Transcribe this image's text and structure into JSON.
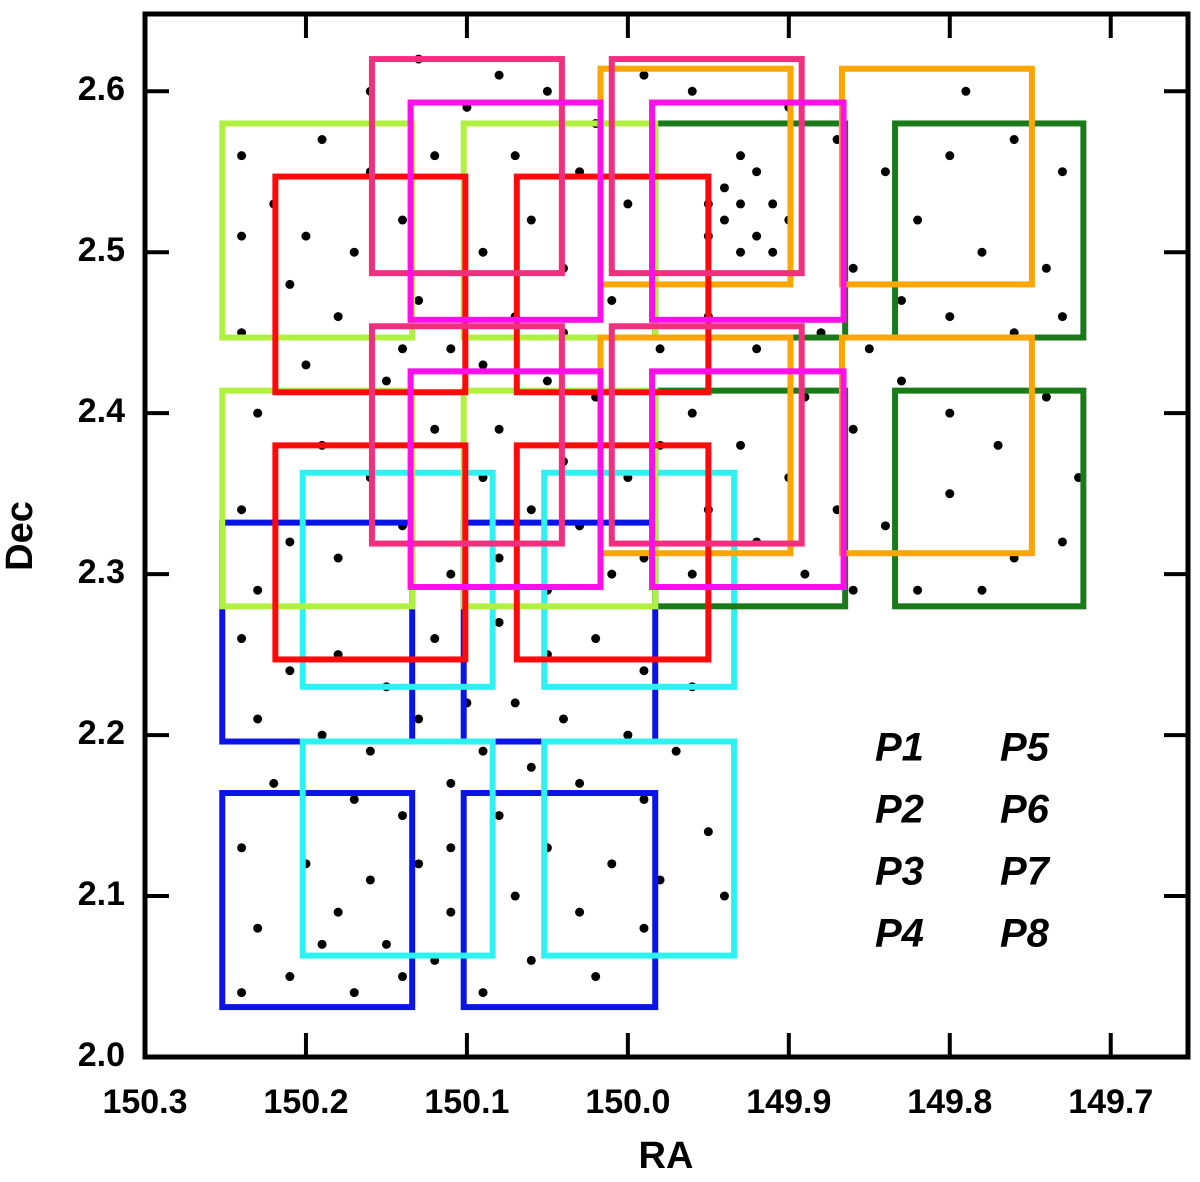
{
  "chart_data": {
    "type": "scatter",
    "x_label": "RA",
    "y_label": "Dec",
    "xlim": [
      150.3,
      149.652
    ],
    "ylim": [
      2.0,
      2.648
    ],
    "xticks": [
      150.3,
      150.2,
      150.1,
      {
        "value": 150,
        "label": "150.0"
      },
      149.9,
      149.8,
      149.7
    ],
    "yticks": [
      {
        "value": 2,
        "label": "2.0"
      },
      2.1,
      2.2,
      2.3,
      2.4,
      2.5,
      2.6
    ],
    "point_color": "#000000",
    "points": [
      [
        150.24,
        2.56
      ],
      [
        150.22,
        2.53
      ],
      [
        150.19,
        2.57
      ],
      [
        150.16,
        2.55
      ],
      [
        150.14,
        2.52
      ],
      [
        150.17,
        2.5
      ],
      [
        150.21,
        2.48
      ],
      [
        150.24,
        2.45
      ],
      [
        150.18,
        2.46
      ],
      [
        150.13,
        2.47
      ],
      [
        150.11,
        2.44
      ],
      [
        150.15,
        2.42
      ],
      [
        150.2,
        2.43
      ],
      [
        150.23,
        2.4
      ],
      [
        150.19,
        2.38
      ],
      [
        150.16,
        2.36
      ],
      [
        150.12,
        2.39
      ],
      [
        150.24,
        2.34
      ],
      [
        150.21,
        2.32
      ],
      [
        150.18,
        2.31
      ],
      [
        150.14,
        2.33
      ],
      [
        150.11,
        2.3
      ],
      [
        150.23,
        2.29
      ],
      [
        150.16,
        2.6
      ],
      [
        150.13,
        2.62
      ],
      [
        150.1,
        2.59
      ],
      [
        150.12,
        2.56
      ],
      [
        150.2,
        2.51
      ],
      [
        150.24,
        2.51
      ],
      [
        150.14,
        2.44
      ],
      [
        150.08,
        2.61
      ],
      [
        150.05,
        2.6
      ],
      [
        150.02,
        2.58
      ],
      [
        149.99,
        2.61
      ],
      [
        150.07,
        2.56
      ],
      [
        150.03,
        2.55
      ],
      [
        150.0,
        2.53
      ],
      [
        150.06,
        2.52
      ],
      [
        150.09,
        2.5
      ],
      [
        150.04,
        2.49
      ],
      [
        150.01,
        2.47
      ],
      [
        150.07,
        2.46
      ],
      [
        150.09,
        2.43
      ],
      [
        150.05,
        2.42
      ],
      [
        150.02,
        2.41
      ],
      [
        149.98,
        2.44
      ],
      [
        150.08,
        2.39
      ],
      [
        150.04,
        2.37
      ],
      [
        150.0,
        2.36
      ],
      [
        150.06,
        2.34
      ],
      [
        150.03,
        2.33
      ],
      [
        149.99,
        2.31
      ],
      [
        150.08,
        2.31
      ],
      [
        150.05,
        2.29
      ],
      [
        150.01,
        2.3
      ],
      [
        149.98,
        2.38
      ],
      [
        150.09,
        2.36
      ],
      [
        150.04,
        2.45
      ],
      [
        149.95,
        2.53
      ],
      [
        149.94,
        2.52
      ],
      [
        149.93,
        2.53
      ],
      [
        149.92,
        2.51
      ],
      [
        149.93,
        2.5
      ],
      [
        149.94,
        2.54
      ],
      [
        149.91,
        2.53
      ],
      [
        149.92,
        2.55
      ],
      [
        149.95,
        2.51
      ],
      [
        149.9,
        2.52
      ],
      [
        149.93,
        2.56
      ],
      [
        149.91,
        2.5
      ],
      [
        149.96,
        2.6
      ],
      [
        149.9,
        2.59
      ],
      [
        149.87,
        2.57
      ],
      [
        149.84,
        2.55
      ],
      [
        149.8,
        2.56
      ],
      [
        149.76,
        2.57
      ],
      [
        149.73,
        2.55
      ],
      [
        149.82,
        2.52
      ],
      [
        149.78,
        2.5
      ],
      [
        149.74,
        2.49
      ],
      [
        149.86,
        2.49
      ],
      [
        149.83,
        2.47
      ],
      [
        149.8,
        2.46
      ],
      [
        149.76,
        2.45
      ],
      [
        149.73,
        2.46
      ],
      [
        149.88,
        2.45
      ],
      [
        149.95,
        2.46
      ],
      [
        149.92,
        2.44
      ],
      [
        149.89,
        2.41
      ],
      [
        149.86,
        2.39
      ],
      [
        149.83,
        2.42
      ],
      [
        149.8,
        2.4
      ],
      [
        149.77,
        2.38
      ],
      [
        149.74,
        2.41
      ],
      [
        149.72,
        2.36
      ],
      [
        149.96,
        2.4
      ],
      [
        149.93,
        2.38
      ],
      [
        149.9,
        2.36
      ],
      [
        149.87,
        2.34
      ],
      [
        149.84,
        2.33
      ],
      [
        149.8,
        2.35
      ],
      [
        149.76,
        2.31
      ],
      [
        149.73,
        2.32
      ],
      [
        149.95,
        2.34
      ],
      [
        149.92,
        2.32
      ],
      [
        149.89,
        2.3
      ],
      [
        149.86,
        2.29
      ],
      [
        149.82,
        2.29
      ],
      [
        149.78,
        2.29
      ],
      [
        149.96,
        2.3
      ],
      [
        149.85,
        2.44
      ],
      [
        149.79,
        2.6
      ],
      [
        150.24,
        2.26
      ],
      [
        150.21,
        2.24
      ],
      [
        150.18,
        2.25
      ],
      [
        150.15,
        2.23
      ],
      [
        150.12,
        2.26
      ],
      [
        150.23,
        2.21
      ],
      [
        150.19,
        2.2
      ],
      [
        150.16,
        2.19
      ],
      [
        150.13,
        2.21
      ],
      [
        150.1,
        2.22
      ],
      [
        150.22,
        2.17
      ],
      [
        150.17,
        2.16
      ],
      [
        150.14,
        2.15
      ],
      [
        150.11,
        2.17
      ],
      [
        150.24,
        2.13
      ],
      [
        150.2,
        2.12
      ],
      [
        150.16,
        2.11
      ],
      [
        150.13,
        2.12
      ],
      [
        150.11,
        2.09
      ],
      [
        150.23,
        2.08
      ],
      [
        150.18,
        2.09
      ],
      [
        150.15,
        2.07
      ],
      [
        150.12,
        2.06
      ],
      [
        150.21,
        2.05
      ],
      [
        150.17,
        2.04
      ],
      [
        150.14,
        2.05
      ],
      [
        150.24,
        2.04
      ],
      [
        150.19,
        2.07
      ],
      [
        150.11,
        2.13
      ],
      [
        150.08,
        2.27
      ],
      [
        150.05,
        2.25
      ],
      [
        150.02,
        2.26
      ],
      [
        149.99,
        2.24
      ],
      [
        150.07,
        2.22
      ],
      [
        150.04,
        2.21
      ],
      [
        150.0,
        2.2
      ],
      [
        150.09,
        2.19
      ],
      [
        150.06,
        2.18
      ],
      [
        150.03,
        2.17
      ],
      [
        149.99,
        2.16
      ],
      [
        150.08,
        2.15
      ],
      [
        150.05,
        2.13
      ],
      [
        150.01,
        2.12
      ],
      [
        150.07,
        2.1
      ],
      [
        150.03,
        2.09
      ],
      [
        149.99,
        2.08
      ],
      [
        150.06,
        2.06
      ],
      [
        150.02,
        2.05
      ],
      [
        150.09,
        2.04
      ],
      [
        149.98,
        2.11
      ],
      [
        149.97,
        2.19
      ],
      [
        149.96,
        2.23
      ],
      [
        149.95,
        2.14
      ],
      [
        149.94,
        2.1
      ]
    ],
    "series": [
      {
        "name": "P1",
        "color": "#0a14e6",
        "boxes": [
          [
            150.252,
            150.134,
            2.196,
            2.332
          ],
          [
            150.102,
            149.983,
            2.196,
            2.332
          ],
          [
            150.252,
            150.134,
            2.031,
            2.164
          ],
          [
            150.102,
            149.983,
            2.031,
            2.164
          ]
        ]
      },
      {
        "name": "P2",
        "color": "#2ef2f2",
        "boxes": [
          [
            150.202,
            150.084,
            2.23,
            2.363
          ],
          [
            150.052,
            149.934,
            2.23,
            2.363
          ],
          [
            150.202,
            150.084,
            2.063,
            2.196
          ],
          [
            150.052,
            149.934,
            2.063,
            2.196
          ]
        ]
      },
      {
        "name": "P3",
        "color": "#1a7a1a",
        "boxes": [
          [
            149.983,
            149.865,
            2.447,
            2.58
          ],
          [
            149.834,
            149.717,
            2.447,
            2.58
          ],
          [
            149.983,
            149.865,
            2.28,
            2.414
          ],
          [
            149.834,
            149.717,
            2.28,
            2.414
          ]
        ]
      },
      {
        "name": "P4",
        "color": "#b0f040",
        "boxes": [
          [
            150.252,
            150.134,
            2.447,
            2.58
          ],
          [
            150.102,
            149.983,
            2.447,
            2.58
          ],
          [
            150.252,
            150.134,
            2.28,
            2.414
          ],
          [
            150.102,
            149.983,
            2.28,
            2.414
          ]
        ]
      },
      {
        "name": "P5",
        "color": "#ffa500",
        "boxes": [
          [
            150.017,
            149.899,
            2.48,
            2.614
          ],
          [
            149.867,
            149.749,
            2.48,
            2.614
          ],
          [
            150.017,
            149.899,
            2.313,
            2.447
          ],
          [
            149.867,
            149.749,
            2.313,
            2.447
          ]
        ]
      },
      {
        "name": "P6",
        "color": "#ff0a0a",
        "boxes": [
          [
            150.219,
            150.101,
            2.413,
            2.547
          ],
          [
            150.069,
            149.95,
            2.413,
            2.547
          ],
          [
            150.219,
            150.101,
            2.247,
            2.38
          ],
          [
            150.069,
            149.95,
            2.247,
            2.38
          ]
        ]
      },
      {
        "name": "P7",
        "color": "#f0307f",
        "boxes": [
          [
            150.159,
            150.041,
            2.487,
            2.62
          ],
          [
            150.01,
            149.892,
            2.487,
            2.62
          ],
          [
            150.159,
            150.041,
            2.319,
            2.454
          ],
          [
            150.01,
            149.892,
            2.319,
            2.454
          ]
        ]
      },
      {
        "name": "P8",
        "color": "#ff10e8",
        "boxes": [
          [
            150.135,
            150.017,
            2.458,
            2.593
          ],
          [
            149.985,
            149.866,
            2.458,
            2.593
          ],
          [
            150.135,
            150.017,
            2.292,
            2.426
          ],
          [
            149.985,
            149.866,
            2.292,
            2.426
          ]
        ]
      }
    ]
  }
}
